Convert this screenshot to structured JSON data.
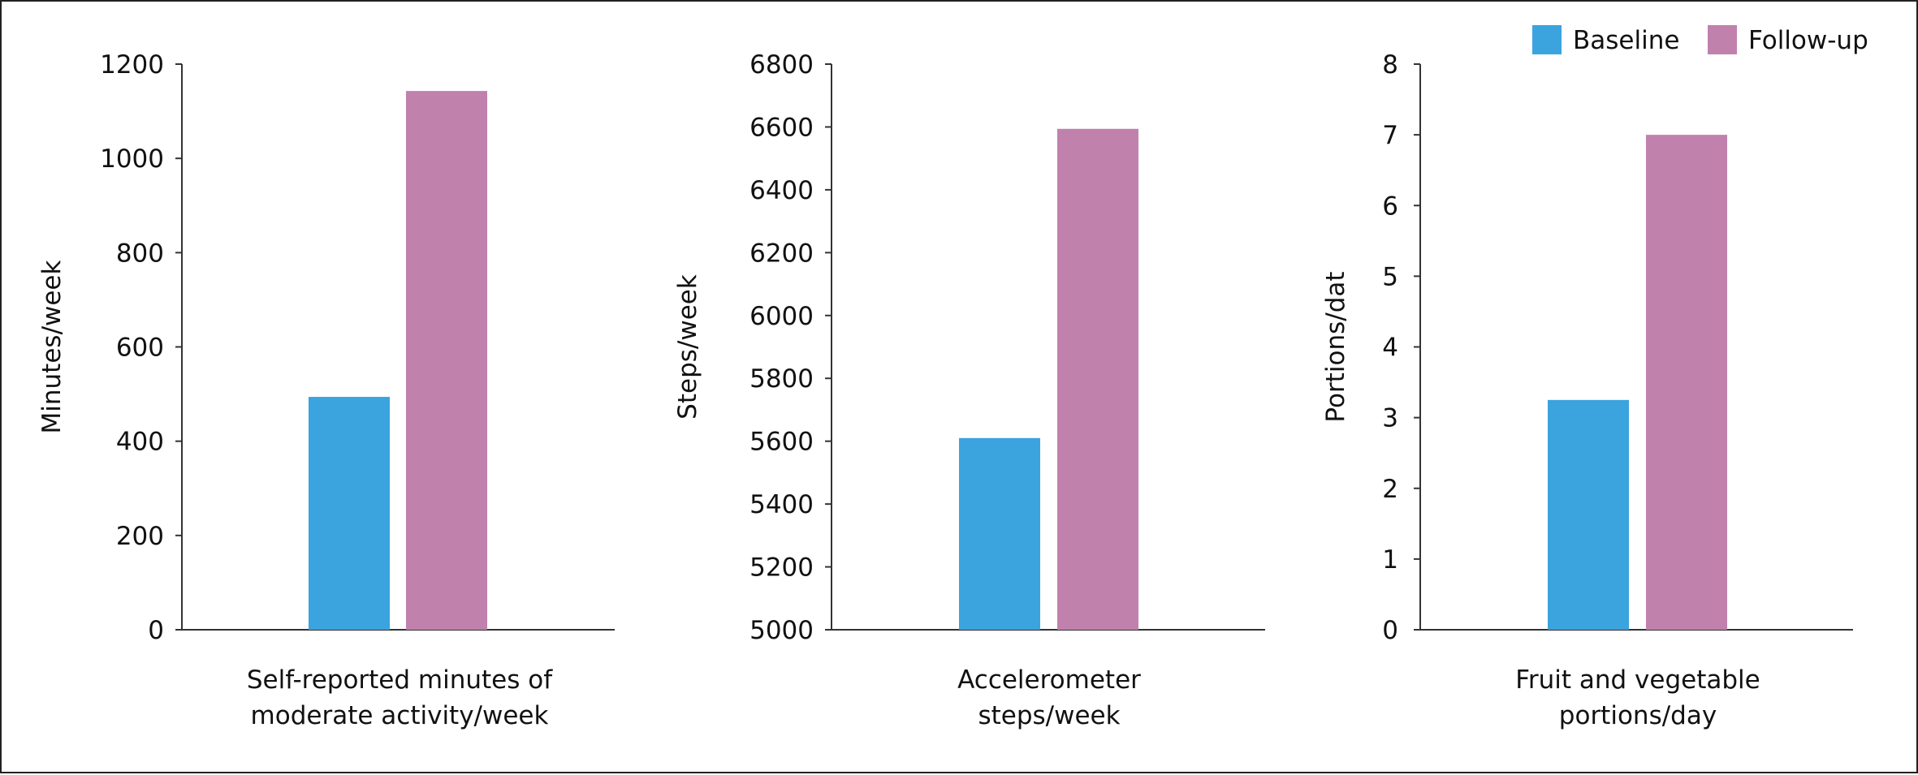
{
  "legend": {
    "position": "top-right",
    "items": [
      {
        "label": "Baseline",
        "color": "#3ba3de"
      },
      {
        "label": "Follow-up",
        "color": "#c081ad"
      }
    ]
  },
  "chart_data": [
    {
      "type": "bar",
      "ylabel": "Minutes/week",
      "ylim": [
        0,
        1200
      ],
      "yticks": [
        "0",
        "200",
        "400",
        "600",
        "800",
        "1000",
        "1200"
      ],
      "category_lines": [
        "Self-reported minutes of",
        "moderate activity/week"
      ],
      "categories": [
        "Self-reported minutes of moderate activity/week"
      ],
      "series": [
        {
          "name": "Baseline",
          "values": [
            494
          ]
        },
        {
          "name": "Follow-up",
          "values": [
            1143
          ]
        }
      ]
    },
    {
      "type": "bar",
      "ylabel": "Steps/week",
      "ylim": [
        5000,
        6800
      ],
      "yticks": [
        "5000",
        "5200",
        "5400",
        "5600",
        "5800",
        "6000",
        "6200",
        "6400",
        "6600",
        "6800"
      ],
      "category_lines": [
        "Accelerometer",
        "steps/week"
      ],
      "categories": [
        "Accelerometer steps/week"
      ],
      "series": [
        {
          "name": "Baseline",
          "values": [
            5610
          ]
        },
        {
          "name": "Follow-up",
          "values": [
            6594
          ]
        }
      ]
    },
    {
      "type": "bar",
      "ylabel": "Portions/dat",
      "ylim": [
        0,
        8
      ],
      "yticks": [
        "0",
        "1",
        "2",
        "3",
        "4",
        "5",
        "6",
        "7",
        "8"
      ],
      "category_lines": [
        "Fruit and vegetable",
        "portions/day"
      ],
      "categories": [
        "Fruit and vegetable portions/day"
      ],
      "series": [
        {
          "name": "Baseline",
          "values": [
            3.25
          ]
        },
        {
          "name": "Follow-up",
          "values": [
            7.0
          ]
        }
      ]
    }
  ]
}
